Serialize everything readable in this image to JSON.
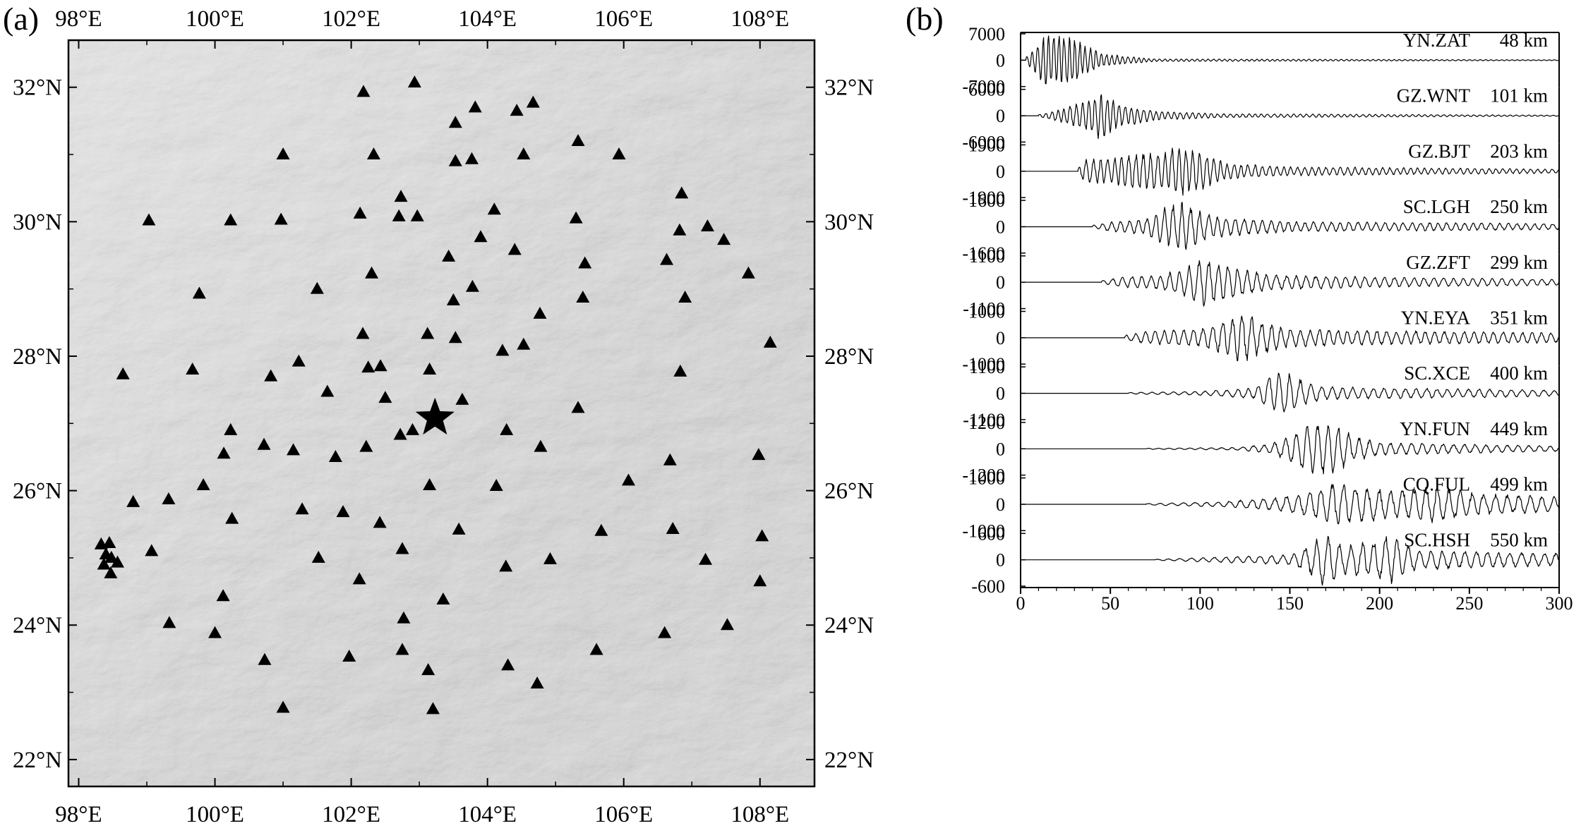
{
  "panels": {
    "a": {
      "label": "(a)",
      "lon_ticks": [
        "98°E",
        "100°E",
        "102°E",
        "104°E",
        "106°E",
        "108°E"
      ],
      "lat_ticks": [
        "32°N",
        "30°N",
        "28°N",
        "26°N",
        "24°N",
        "22°N"
      ]
    },
    "b": {
      "label": "(b)",
      "x_ticks": [
        "0",
        "50",
        "100",
        "150",
        "200",
        "250",
        "300"
      ]
    }
  },
  "chart_data": [
    {
      "type": "scatter",
      "subplot": "a",
      "description_basis": "map of seismic stations (triangles) and epicenter (star)",
      "xlim": [
        97.85,
        108.8
      ],
      "ylim": [
        21.6,
        32.7
      ],
      "x_ticks": [
        98,
        100,
        102,
        104,
        106,
        108
      ],
      "y_ticks": [
        22,
        24,
        26,
        28,
        30,
        32
      ],
      "epicenter": {
        "lon": 103.23,
        "lat": 27.08
      },
      "stations": [
        [
          102.18,
          31.93
        ],
        [
          102.93,
          32.07
        ],
        [
          103.53,
          31.47
        ],
        [
          103.82,
          31.7
        ],
        [
          104.43,
          31.65
        ],
        [
          104.67,
          31.77
        ],
        [
          101.0,
          31.0
        ],
        [
          102.33,
          31.0
        ],
        [
          103.53,
          30.9
        ],
        [
          103.77,
          30.93
        ],
        [
          104.53,
          31.0
        ],
        [
          105.33,
          31.2
        ],
        [
          105.93,
          31.0
        ],
        [
          99.03,
          30.02
        ],
        [
          100.23,
          30.02
        ],
        [
          100.97,
          30.03
        ],
        [
          102.13,
          30.12
        ],
        [
          102.73,
          30.37
        ],
        [
          102.7,
          30.08
        ],
        [
          102.97,
          30.08
        ],
        [
          104.1,
          30.18
        ],
        [
          105.3,
          30.05
        ],
        [
          106.85,
          30.42
        ],
        [
          106.82,
          29.87
        ],
        [
          107.23,
          29.93
        ],
        [
          107.47,
          29.73
        ],
        [
          103.43,
          29.48
        ],
        [
          103.9,
          29.77
        ],
        [
          104.4,
          29.58
        ],
        [
          105.43,
          29.38
        ],
        [
          106.63,
          29.43
        ],
        [
          107.83,
          29.23
        ],
        [
          99.77,
          28.93
        ],
        [
          101.5,
          29.0
        ],
        [
          102.3,
          29.23
        ],
        [
          103.78,
          29.03
        ],
        [
          103.5,
          28.83
        ],
        [
          104.77,
          28.63
        ],
        [
          105.4,
          28.87
        ],
        [
          106.9,
          28.87
        ],
        [
          108.15,
          28.2
        ],
        [
          102.17,
          28.33
        ],
        [
          103.12,
          28.33
        ],
        [
          103.53,
          28.27
        ],
        [
          104.22,
          28.08
        ],
        [
          104.53,
          28.17
        ],
        [
          98.65,
          27.73
        ],
        [
          99.67,
          27.8
        ],
        [
          100.82,
          27.7
        ],
        [
          101.23,
          27.92
        ],
        [
          102.25,
          27.83
        ],
        [
          102.43,
          27.85
        ],
        [
          103.15,
          27.8
        ],
        [
          101.65,
          27.47
        ],
        [
          102.5,
          27.38
        ],
        [
          103.63,
          27.35
        ],
        [
          105.33,
          27.23
        ],
        [
          106.83,
          27.77
        ],
        [
          100.23,
          26.9
        ],
        [
          102.72,
          26.83
        ],
        [
          102.9,
          26.9
        ],
        [
          104.28,
          26.9
        ],
        [
          100.13,
          26.55
        ],
        [
          100.72,
          26.68
        ],
        [
          101.15,
          26.6
        ],
        [
          101.77,
          26.5
        ],
        [
          102.22,
          26.65
        ],
        [
          104.78,
          26.65
        ],
        [
          106.68,
          26.45
        ],
        [
          107.98,
          26.53
        ],
        [
          99.83,
          26.08
        ],
        [
          103.15,
          26.08
        ],
        [
          104.13,
          26.07
        ],
        [
          106.07,
          26.15
        ],
        [
          98.8,
          25.83
        ],
        [
          99.32,
          25.87
        ],
        [
          100.25,
          25.58
        ],
        [
          101.28,
          25.72
        ],
        [
          101.88,
          25.68
        ],
        [
          102.42,
          25.52
        ],
        [
          103.58,
          25.42
        ],
        [
          105.67,
          25.4
        ],
        [
          106.72,
          25.43
        ],
        [
          108.03,
          25.32
        ],
        [
          98.33,
          25.2
        ],
        [
          98.45,
          25.22
        ],
        [
          98.4,
          25.05
        ],
        [
          98.48,
          25.0
        ],
        [
          98.57,
          24.93
        ],
        [
          98.37,
          24.9
        ],
        [
          98.47,
          24.77
        ],
        [
          99.07,
          25.1
        ],
        [
          101.52,
          25.0
        ],
        [
          102.75,
          25.13
        ],
        [
          104.27,
          24.87
        ],
        [
          104.92,
          24.98
        ],
        [
          107.2,
          24.97
        ],
        [
          108.0,
          24.65
        ],
        [
          102.12,
          24.68
        ],
        [
          100.12,
          24.43
        ],
        [
          103.35,
          24.38
        ],
        [
          99.33,
          24.03
        ],
        [
          100.0,
          23.88
        ],
        [
          102.77,
          24.1
        ],
        [
          106.6,
          23.88
        ],
        [
          107.52,
          24.0
        ],
        [
          100.73,
          23.48
        ],
        [
          101.97,
          23.53
        ],
        [
          102.75,
          23.63
        ],
        [
          103.13,
          23.33
        ],
        [
          104.3,
          23.4
        ],
        [
          105.6,
          23.63
        ],
        [
          104.73,
          23.13
        ],
        [
          101.0,
          22.77
        ],
        [
          103.2,
          22.75
        ]
      ]
    },
    {
      "type": "line",
      "subplot": "b",
      "description_basis": "waveforms per station vs time",
      "xlim": [
        0,
        300
      ],
      "x_ticks": [
        0,
        50,
        100,
        150,
        200,
        250,
        300
      ],
      "series": [
        {
          "station": "YN.ZAT",
          "distance": "48 km",
          "amp_ticks": [
            "7000",
            "0",
            "-7000"
          ],
          "amp": 7000,
          "onset": 3,
          "env": [
            [
              3,
              0.1
            ],
            [
              8,
              0.5
            ],
            [
              14,
              1.0
            ],
            [
              28,
              1.0
            ],
            [
              33,
              0.7
            ],
            [
              45,
              0.25
            ],
            [
              75,
              0.05
            ],
            [
              300,
              0.015
            ]
          ],
          "period": 3.0
        },
        {
          "station": "GZ.WNT",
          "distance": "101 km",
          "amp_ticks": [
            "6000",
            "0",
            "-6000"
          ],
          "amp": 6000,
          "onset": 10,
          "env": [
            [
              10,
              0.05
            ],
            [
              20,
              0.2
            ],
            [
              30,
              0.45
            ],
            [
              38,
              0.6
            ],
            [
              44,
              0.95
            ],
            [
              55,
              0.45
            ],
            [
              75,
              0.18
            ],
            [
              110,
              0.08
            ],
            [
              300,
              0.02
            ]
          ],
          "period": 3.5
        },
        {
          "station": "GZ.BJT",
          "distance": "203 km",
          "amp_ticks": [
            "1900",
            "0",
            "-1900"
          ],
          "amp": 1900,
          "onset": 32,
          "env": [
            [
              32,
              0.1
            ],
            [
              36,
              0.45
            ],
            [
              50,
              0.5
            ],
            [
              65,
              0.7
            ],
            [
              78,
              0.75
            ],
            [
              90,
              1.0
            ],
            [
              100,
              0.8
            ],
            [
              115,
              0.3
            ],
            [
              150,
              0.18
            ],
            [
              300,
              0.08
            ]
          ],
          "period": 4.0
        },
        {
          "station": "SC.LGH",
          "distance": "250 km",
          "amp_ticks": [
            "1600",
            "0",
            "-1600"
          ],
          "amp": 1600,
          "onset": 40,
          "env": [
            [
              40,
              0.05
            ],
            [
              50,
              0.2
            ],
            [
              70,
              0.3
            ],
            [
              78,
              0.7
            ],
            [
              90,
              0.95
            ],
            [
              100,
              0.6
            ],
            [
              110,
              0.4
            ],
            [
              150,
              0.2
            ],
            [
              300,
              0.12
            ]
          ],
          "period": 5.0
        },
        {
          "station": "GZ.ZFT",
          "distance": "299 km",
          "amp_ticks": [
            "1100",
            "0",
            "-1100"
          ],
          "amp": 1100,
          "onset": 45,
          "env": [
            [
              45,
              0.05
            ],
            [
              55,
              0.2
            ],
            [
              80,
              0.3
            ],
            [
              95,
              0.7
            ],
            [
              100,
              0.95
            ],
            [
              115,
              0.7
            ],
            [
              125,
              0.5
            ],
            [
              140,
              0.3
            ],
            [
              200,
              0.2
            ],
            [
              300,
              0.12
            ]
          ],
          "period": 5.5
        },
        {
          "station": "YN.EYA",
          "distance": "351 km",
          "amp_ticks": [
            "1000",
            "0",
            "-1000"
          ],
          "amp": 1000,
          "onset": 58,
          "env": [
            [
              58,
              0.1
            ],
            [
              70,
              0.25
            ],
            [
              100,
              0.35
            ],
            [
              115,
              0.7
            ],
            [
              123,
              1.0
            ],
            [
              135,
              0.6
            ],
            [
              150,
              0.35
            ],
            [
              180,
              0.3
            ],
            [
              230,
              0.25
            ],
            [
              300,
              0.2
            ]
          ],
          "period": 5.5
        },
        {
          "station": "SC.XCE",
          "distance": "400 km",
          "amp_ticks": [
            "1100",
            "0",
            "-1100"
          ],
          "amp": 1100,
          "onset": 60,
          "env": [
            [
              60,
              0.03
            ],
            [
              100,
              0.08
            ],
            [
              130,
              0.2
            ],
            [
              140,
              0.7
            ],
            [
              148,
              0.9
            ],
            [
              158,
              0.45
            ],
            [
              170,
              0.25
            ],
            [
              300,
              0.12
            ]
          ],
          "period": 6.0
        },
        {
          "station": "YN.FUN",
          "distance": "449 km",
          "amp_ticks": [
            "1200",
            "0",
            "-1200"
          ],
          "amp": 1200,
          "onset": 70,
          "env": [
            [
              70,
              0.02
            ],
            [
              120,
              0.05
            ],
            [
              140,
              0.2
            ],
            [
              150,
              0.5
            ],
            [
              160,
              0.95
            ],
            [
              175,
              1.0
            ],
            [
              185,
              0.5
            ],
            [
              200,
              0.25
            ],
            [
              300,
              0.1
            ]
          ],
          "period": 6.0
        },
        {
          "station": "CQ.FUL",
          "distance": "499 km",
          "amp_ticks": [
            "1000",
            "0",
            "-1000"
          ],
          "amp": 1000,
          "onset": 70,
          "env": [
            [
              70,
              0.03
            ],
            [
              110,
              0.1
            ],
            [
              140,
              0.25
            ],
            [
              160,
              0.45
            ],
            [
              175,
              0.85
            ],
            [
              190,
              0.7
            ],
            [
              210,
              0.55
            ],
            [
              230,
              0.7
            ],
            [
              260,
              0.4
            ],
            [
              300,
              0.3
            ]
          ],
          "period": 6.5
        },
        {
          "station": "SC.HSH",
          "distance": "550 km",
          "amp_ticks": [
            "600",
            "0",
            "-600"
          ],
          "amp": 600,
          "onset": 75,
          "env": [
            [
              75,
              0.02
            ],
            [
              100,
              0.08
            ],
            [
              130,
              0.15
            ],
            [
              150,
              0.2
            ],
            [
              160,
              0.5
            ],
            [
              168,
              1.0
            ],
            [
              180,
              0.6
            ],
            [
              195,
              0.7
            ],
            [
              205,
              0.95
            ],
            [
              220,
              0.4
            ],
            [
              260,
              0.3
            ],
            [
              300,
              0.25
            ]
          ],
          "period": 6.5
        }
      ]
    }
  ]
}
